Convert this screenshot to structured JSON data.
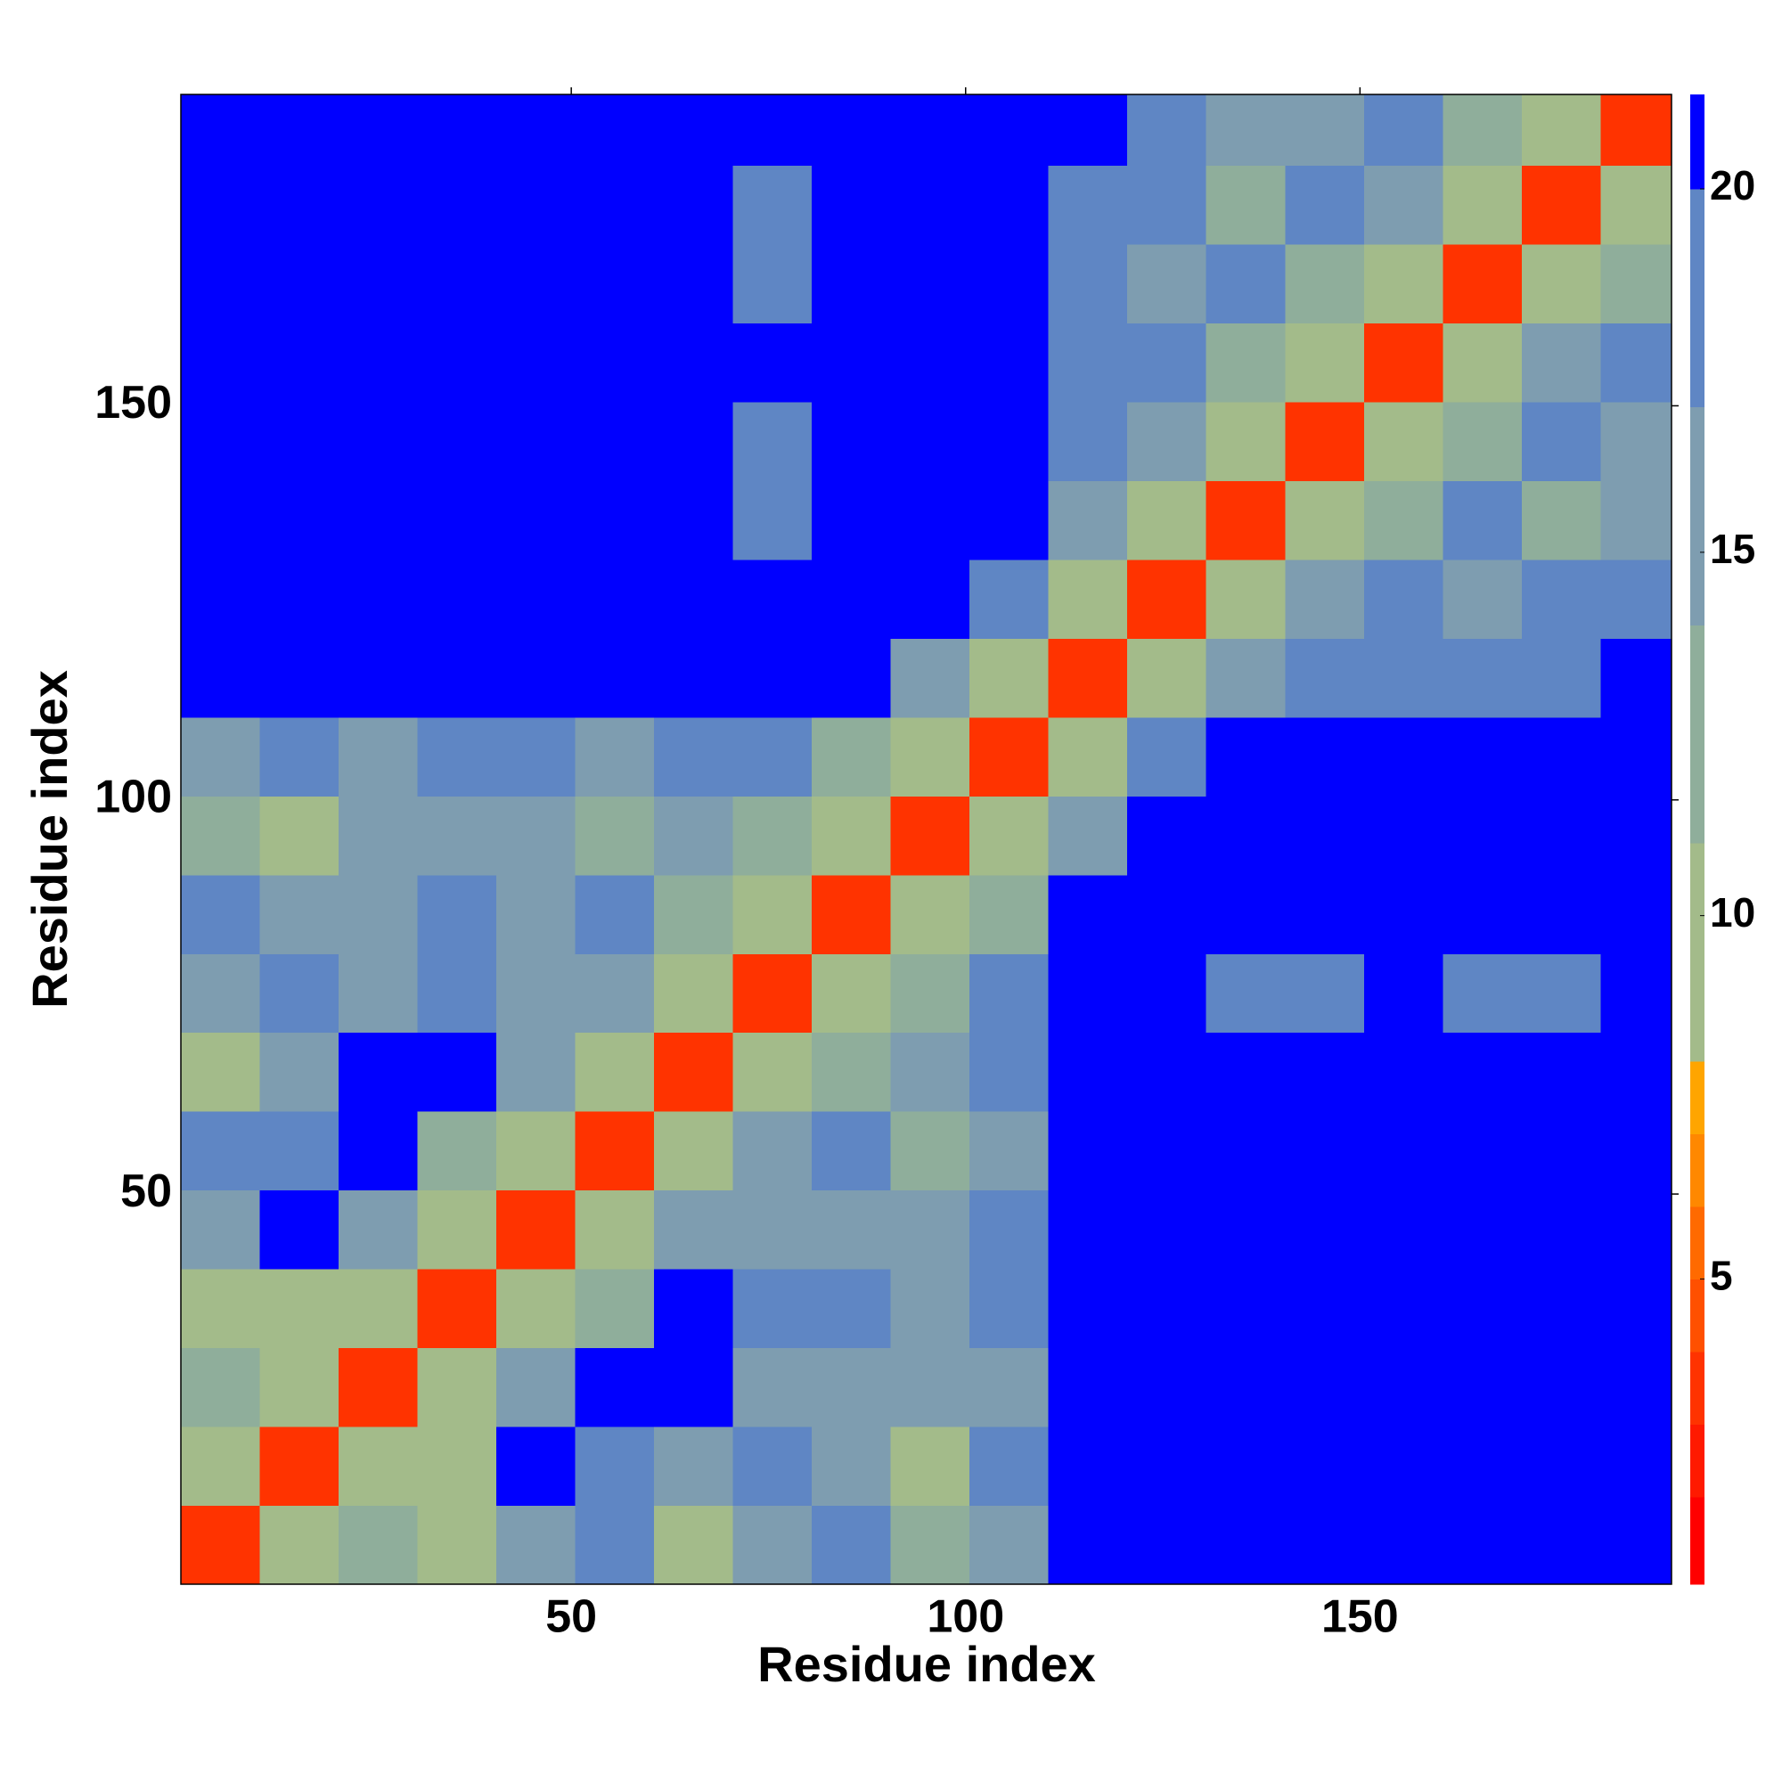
{
  "chart_data": {
    "type": "heatmap",
    "xlabel": "Residue index",
    "ylabel": "Residue index",
    "bins": [
      0.5,
      10.5,
      20.5,
      30.5,
      40.5,
      50.5,
      60.5,
      70.5,
      80.5,
      90.5,
      100.5,
      110.5,
      120.5,
      130.5,
      140.5,
      150.5,
      160.5,
      170.5,
      180.5,
      189.5
    ],
    "xlim": [
      0.5,
      189.5
    ],
    "ylim": [
      0.5,
      189.5
    ],
    "xticks": [
      50,
      100,
      150
    ],
    "yticks": [
      50,
      100,
      150
    ],
    "z": [
      [
        3,
        8,
        12,
        9,
        15,
        17,
        10,
        15,
        17,
        13,
        16,
        21,
        21,
        21,
        21,
        21,
        21,
        21,
        21
      ],
      [
        8,
        3,
        8,
        10,
        21,
        18,
        15,
        17,
        16,
        10,
        17,
        21,
        21,
        21,
        21,
        21,
        21,
        21,
        21
      ],
      [
        12,
        8,
        3,
        8,
        14,
        21,
        21,
        15,
        16,
        15,
        16,
        21,
        21,
        21,
        21,
        21,
        21,
        21,
        21
      ],
      [
        9,
        10,
        8,
        3,
        8,
        13,
        21,
        17,
        17,
        14,
        18,
        21,
        21,
        21,
        21,
        21,
        21,
        21,
        21
      ],
      [
        15,
        21,
        14,
        8,
        3,
        8,
        14,
        16,
        15,
        15,
        17,
        21,
        21,
        21,
        21,
        21,
        21,
        21,
        21
      ],
      [
        17,
        18,
        21,
        13,
        8,
        3,
        8,
        14,
        18,
        11,
        16,
        21,
        21,
        21,
        21,
        21,
        21,
        21,
        21
      ],
      [
        10,
        15,
        21,
        21,
        14,
        8,
        3,
        8,
        12,
        16,
        18,
        21,
        21,
        21,
        21,
        21,
        21,
        21,
        21
      ],
      [
        15,
        17,
        15,
        17,
        16,
        14,
        8,
        3,
        8,
        13,
        17,
        21,
        21,
        19,
        17,
        21,
        18,
        19,
        21
      ],
      [
        17,
        16,
        16,
        17,
        15,
        18,
        12,
        8,
        3,
        8,
        12,
        21,
        21,
        21,
        21,
        21,
        21,
        21,
        21
      ],
      [
        13,
        10,
        15,
        14,
        15,
        11,
        16,
        13,
        8,
        3,
        8,
        15,
        21,
        21,
        21,
        21,
        21,
        21,
        21
      ],
      [
        16,
        17,
        16,
        18,
        17,
        16,
        18,
        17,
        12,
        8,
        3,
        8,
        18,
        21,
        21,
        21,
        21,
        21,
        21
      ],
      [
        21,
        21,
        21,
        21,
        21,
        21,
        21,
        21,
        21,
        15,
        8,
        3,
        8,
        15,
        17,
        18,
        19,
        18,
        21
      ],
      [
        21,
        21,
        21,
        21,
        21,
        21,
        21,
        21,
        21,
        21,
        18,
        8,
        3,
        8,
        14,
        17,
        15,
        18,
        18
      ],
      [
        21,
        21,
        21,
        21,
        21,
        21,
        21,
        19,
        21,
        21,
        21,
        15,
        8,
        3,
        8,
        12,
        17,
        13,
        16
      ],
      [
        21,
        21,
        21,
        21,
        21,
        21,
        21,
        17,
        21,
        21,
        21,
        17,
        14,
        8,
        3,
        8,
        13,
        18,
        16
      ],
      [
        21,
        21,
        21,
        21,
        21,
        21,
        21,
        21,
        21,
        21,
        21,
        18,
        17,
        12,
        8,
        3,
        8,
        14,
        17
      ],
      [
        21,
        21,
        21,
        21,
        21,
        21,
        21,
        18,
        21,
        21,
        21,
        19,
        15,
        17,
        13,
        8,
        3,
        8,
        12
      ],
      [
        21,
        21,
        21,
        21,
        21,
        21,
        21,
        19,
        21,
        21,
        21,
        18,
        18,
        13,
        18,
        14,
        8,
        3,
        8
      ],
      [
        21,
        21,
        21,
        21,
        21,
        21,
        21,
        21,
        21,
        21,
        21,
        21,
        18,
        16,
        16,
        17,
        12,
        8,
        3
      ]
    ],
    "colorbar": {
      "levels": [
        0.8,
        2,
        3,
        4,
        5,
        6,
        7,
        8,
        11,
        14,
        17,
        20,
        21.3
      ],
      "colors": [
        "#ff0000",
        "#ff1a00",
        "#ff3300",
        "#ff5000",
        "#ff6a00",
        "#ff8800",
        "#ffa500",
        "#a3bb8a",
        "#8fae9b",
        "#7e9db0",
        "#5f86c4",
        "#0000ff"
      ],
      "ticks": [
        5,
        10,
        15,
        20
      ]
    }
  }
}
